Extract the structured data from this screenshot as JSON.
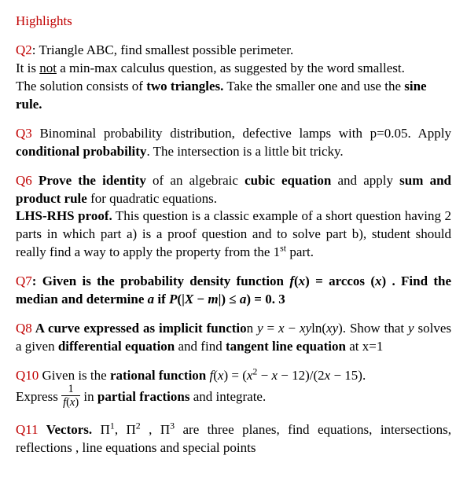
{
  "title": "Highlights",
  "q2": {
    "label": "Q2",
    "lead": ": Triangle ABC, find smallest possible perimeter.",
    "line2a": "It is ",
    "line2_not": "not",
    "line2b": " a min-max calculus question, as suggested by the word smallest.",
    "line3a": "The solution consists of ",
    "line3b": "two triangles.",
    "line3c": " Take the smaller one and use the ",
    "line3d": "sine rule."
  },
  "q3": {
    "label": "Q3",
    "text1": " Binominal probability distribution, defective lamps with p=0.05. Apply ",
    "bold1": "conditional probability",
    "text2": ". The intersection is a little bit tricky."
  },
  "q6": {
    "label": "Q6",
    "b1": " Prove the identity",
    "t1": " of an algebraic ",
    "b2": "cubic equation",
    "t2": " and apply ",
    "b3": "sum and product rule",
    "t3": " for quadratic equations.",
    "b4": "LHS-RHS proof.",
    "t4": " This question is a classic example of a short question having 2 parts in which part a) is a proof question and to solve part b), student should really find a way to apply the property from the 1",
    "sup": "st",
    "t5": " part."
  },
  "q7": {
    "label": "Q7",
    "b1": ": Given is the probability density function ",
    "fx": "f",
    "opx": "(",
    "x1": "x",
    "cpx": ")",
    "eq1": " = arccos (",
    "x2": "x",
    "cp2": ") .",
    "b2": " Find the median and determine ",
    "a": "a",
    "b3": " if ",
    "p1": "P",
    "op2": "(|",
    "X": "X",
    "minus": " − ",
    "m": "m",
    "le": "|) ≤ ",
    "a2": "a",
    "cp3": ")",
    "eq2": " = 0. 3"
  },
  "q8": {
    "label": "Q8",
    "b1": " A curve expressed as implicit functio",
    "t1": "n ",
    "y": "y",
    "eq": " = ",
    "x": "x",
    "minus": " − ",
    "xy": "xy",
    "ln": "ln",
    "op": "(",
    "xy2": "xy",
    "cp": ").",
    "t2": " Show that ",
    "y2": "y",
    "t3": " solves a given ",
    "b2": "differential equation",
    "t4": " and find ",
    "b3": "tangent line equation",
    "t5": "  at x=1"
  },
  "q10": {
    "label": "Q10",
    "t1": " Given is the ",
    "b1": "rational function",
    "sp": "  ",
    "f": "f",
    "op": "(",
    "x": "x",
    "cp": ")",
    "eq": " = (",
    "x2": "x",
    "sq": "2",
    "minus1": " − ",
    "x3": "x",
    "minus2": " − 12)/(2",
    "x4": "x",
    "minus3": " − 15).",
    "t2": "Express ",
    "num": "1",
    "den_f": "f",
    "den_op": "(",
    "den_x": "x",
    "den_cp": ")",
    "t3": " in ",
    "b2": " partial fractions",
    "t4": " and integrate."
  },
  "q11": {
    "label": "Q11",
    "b1": " Vectors.",
    "sp": "  Π",
    "s1": "1",
    "c1": ", Π",
    "s2": "2",
    "c2": "  , Π",
    "s3": "3",
    "t1": "  are three planes, find equations, intersections, reflections , line equations and special points"
  }
}
